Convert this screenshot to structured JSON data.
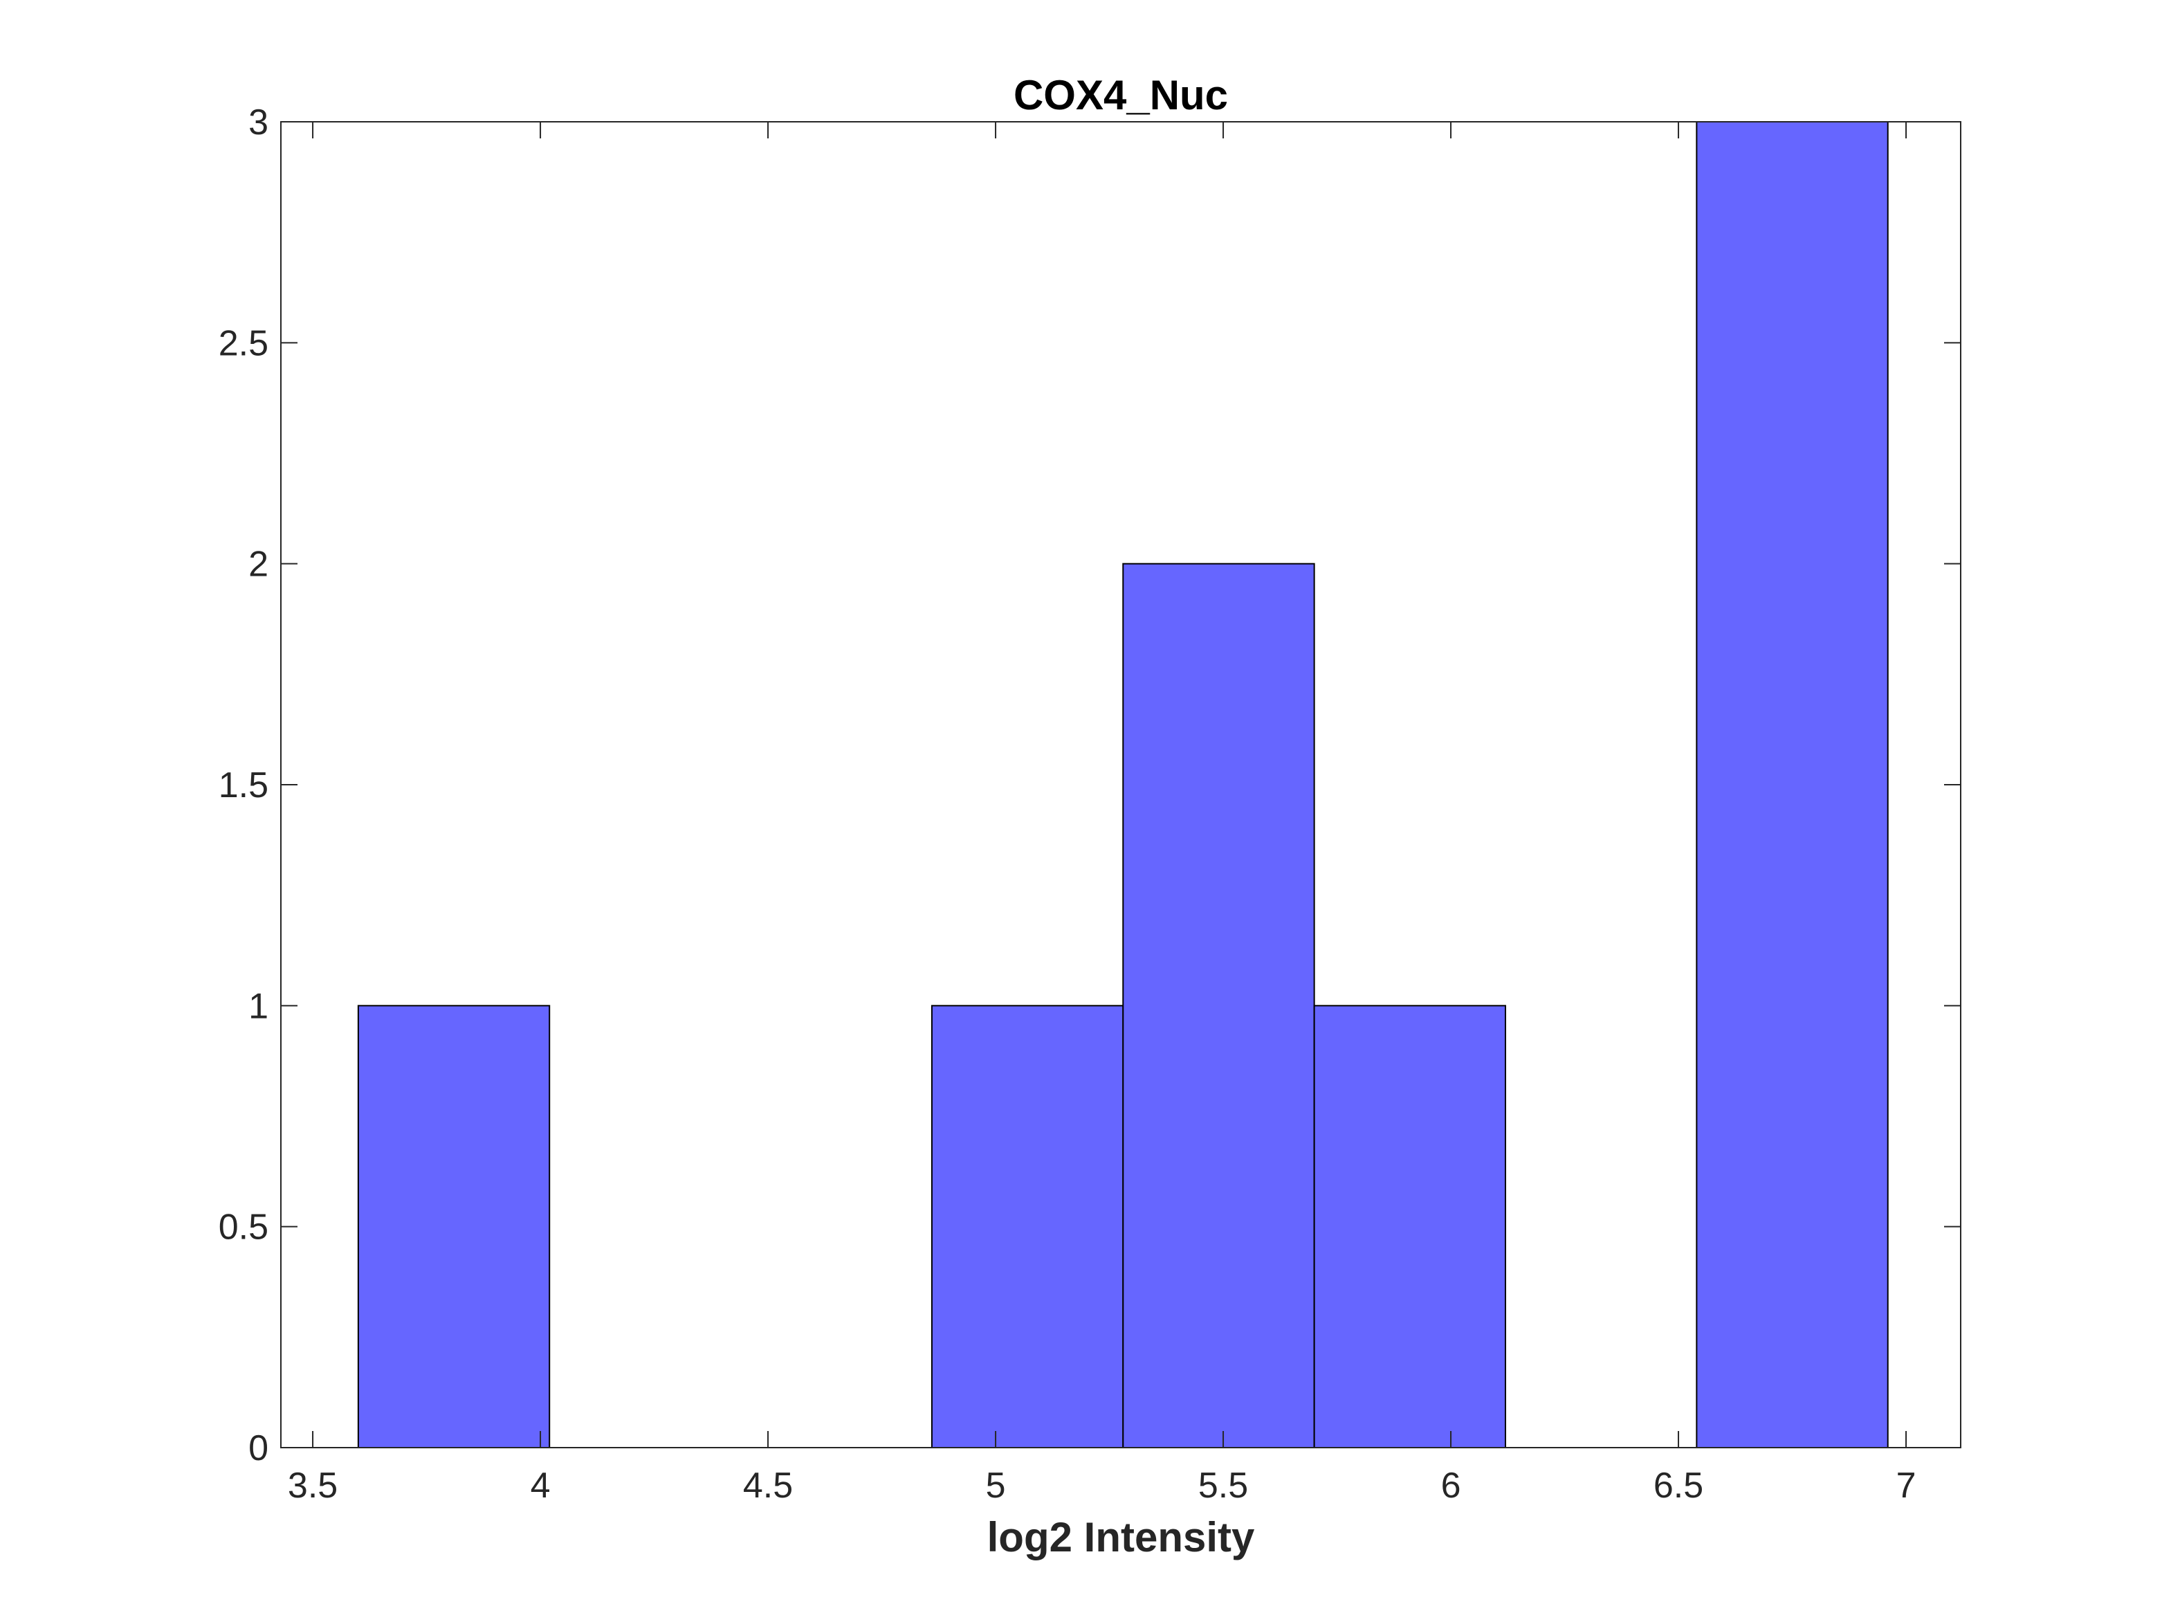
{
  "chart_data": {
    "type": "bar",
    "subtype": "histogram",
    "title": "COX4_Nuc",
    "xlabel": "log2 Intensity",
    "ylabel": "",
    "xlim": [
      3.43,
      7.12
    ],
    "ylim": [
      0,
      3
    ],
    "xticks": [
      3.5,
      4,
      4.5,
      5,
      5.5,
      6,
      6.5,
      7
    ],
    "xtick_labels": [
      "3.5",
      "4",
      "4.5",
      "5",
      "5.5",
      "6",
      "6.5",
      "7"
    ],
    "yticks": [
      0,
      0.5,
      1,
      1.5,
      2,
      2.5,
      3
    ],
    "ytick_labels": [
      "0",
      "0.5",
      "1",
      "1.5",
      "2",
      "2.5",
      "3"
    ],
    "bins": [
      {
        "x0": 3.6,
        "x1": 4.02,
        "count": 1
      },
      {
        "x0": 4.02,
        "x1": 4.44,
        "count": 0
      },
      {
        "x0": 4.44,
        "x1": 4.86,
        "count": 0
      },
      {
        "x0": 4.86,
        "x1": 5.28,
        "count": 1
      },
      {
        "x0": 5.28,
        "x1": 5.7,
        "count": 2
      },
      {
        "x0": 5.7,
        "x1": 6.12,
        "count": 1
      },
      {
        "x0": 6.12,
        "x1": 6.54,
        "count": 0
      },
      {
        "x0": 6.54,
        "x1": 6.96,
        "count": 3
      }
    ],
    "bar_color": "#6666ff",
    "edge_color": "#000000",
    "grid": false,
    "legend": "none"
  }
}
